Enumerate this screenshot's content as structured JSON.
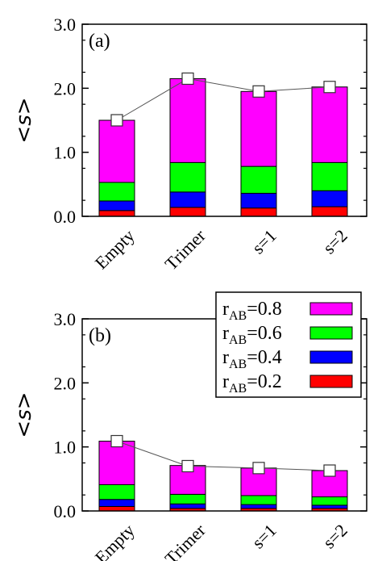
{
  "chart_data": [
    {
      "type": "bar",
      "stacked": true,
      "panel_label": "(a)",
      "ylabel": "<s>",
      "ylim": [
        0,
        3.0
      ],
      "yticks": [
        "0.0",
        "1.0",
        "2.0",
        "3.0"
      ],
      "categories": [
        "Empty",
        "Trimer",
        "s=1",
        "s=2"
      ],
      "series": [
        {
          "name": "r_AB=0.2",
          "color": "#ff0000",
          "values": [
            0.09,
            0.14,
            0.13,
            0.15
          ]
        },
        {
          "name": "r_AB=0.4",
          "color": "#0000ff",
          "values": [
            0.15,
            0.24,
            0.23,
            0.25
          ]
        },
        {
          "name": "r_AB=0.6",
          "color": "#00ff00",
          "values": [
            0.29,
            0.46,
            0.42,
            0.44
          ]
        },
        {
          "name": "r_AB=0.8",
          "color": "#ff00ff",
          "values": [
            0.97,
            1.31,
            1.17,
            1.18
          ]
        }
      ],
      "line_markers": [
        1.5,
        2.15,
        1.95,
        2.02
      ]
    },
    {
      "type": "bar",
      "stacked": true,
      "panel_label": "(b)",
      "ylabel": "<s>",
      "ylim": [
        0,
        3.0
      ],
      "yticks": [
        "0.0",
        "1.0",
        "2.0",
        "3.0"
      ],
      "categories": [
        "Empty",
        "Trimer",
        "s=1",
        "s=2"
      ],
      "series": [
        {
          "name": "r_AB=0.2",
          "color": "#ff0000",
          "values": [
            0.07,
            0.04,
            0.04,
            0.04
          ]
        },
        {
          "name": "r_AB=0.4",
          "color": "#0000ff",
          "values": [
            0.11,
            0.07,
            0.06,
            0.05
          ]
        },
        {
          "name": "r_AB=0.6",
          "color": "#00ff00",
          "values": [
            0.23,
            0.15,
            0.14,
            0.13
          ]
        },
        {
          "name": "r_AB=0.8",
          "color": "#ff00ff",
          "values": [
            0.68,
            0.45,
            0.43,
            0.41
          ]
        }
      ],
      "line_markers": [
        1.09,
        0.7,
        0.67,
        0.63
      ],
      "legend": {
        "placement": "top-right",
        "entries": [
          {
            "prefix": "r",
            "sub": "AB",
            "suffix": "=0.8",
            "color": "#ff00ff"
          },
          {
            "prefix": "r",
            "sub": "AB",
            "suffix": "=0.6",
            "color": "#00ff00"
          },
          {
            "prefix": "r",
            "sub": "AB",
            "suffix": "=0.4",
            "color": "#0000ff"
          },
          {
            "prefix": "r",
            "sub": "AB",
            "suffix": "=0.2",
            "color": "#ff0000"
          }
        ]
      }
    }
  ]
}
